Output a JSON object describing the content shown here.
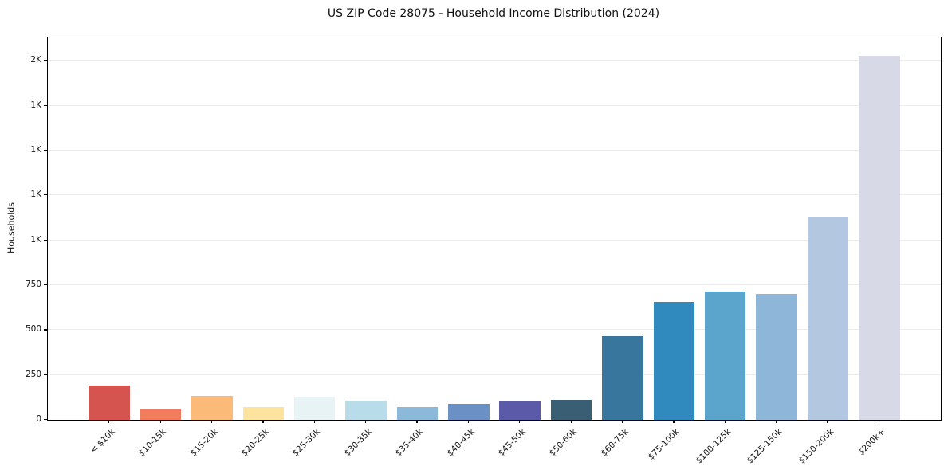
{
  "chart_data": {
    "type": "bar",
    "title": "US ZIP Code 28075 - Household Income Distribution (2024)",
    "xlabel": "",
    "ylabel": "Households",
    "categories": [
      "< $10k",
      "$10-15k",
      "$15-20k",
      "$20-25k",
      "$25-30k",
      "$30-35k",
      "$35-40k",
      "$40-45k",
      "$45-50k",
      "$50-60k",
      "$60-75k",
      "$75-100k",
      "$100-125k",
      "$125-150k",
      "$150-200k",
      "$200k+"
    ],
    "values": [
      190,
      60,
      132,
      72,
      130,
      106,
      70,
      91,
      101,
      113,
      465,
      655,
      715,
      700,
      1130,
      2030
    ],
    "bar_colors": [
      "#d6544f",
      "#f07c5d",
      "#fbba77",
      "#fce49e",
      "#e8f3f6",
      "#b8dcea",
      "#8cb9da",
      "#6b90c6",
      "#5a5aa8",
      "#3a5f74",
      "#38769d",
      "#318abd",
      "#5ba4cb",
      "#8db6d8",
      "#b4c7e0",
      "#d7d9e6"
    ],
    "ylim": [
      0,
      2130
    ],
    "yticks": [
      {
        "value": 0,
        "label": "0"
      },
      {
        "value": 250,
        "label": "250"
      },
      {
        "value": 500,
        "label": "500"
      },
      {
        "value": 750,
        "label": "750"
      },
      {
        "value": 1000,
        "label": "1K"
      },
      {
        "value": 1250,
        "label": "1K"
      },
      {
        "value": 1500,
        "label": "1K"
      },
      {
        "value": 1750,
        "label": "1K"
      },
      {
        "value": 2000,
        "label": "2K"
      }
    ],
    "grid": "horizontal",
    "legend": "none",
    "background_color": "#ffffff",
    "gridline_color": "#ececec",
    "spine_color": "#000000",
    "text_color": "#111111"
  }
}
